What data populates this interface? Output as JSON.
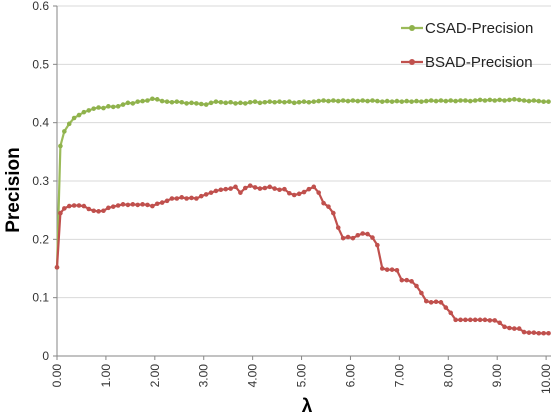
{
  "chart_data": {
    "type": "line",
    "xlabel": "λ",
    "ylabel": "Precision",
    "xlim": [
      0,
      10.1
    ],
    "ylim": [
      0,
      0.6
    ],
    "x_ticks": [
      0,
      1,
      2,
      3,
      4,
      5,
      6,
      7,
      8,
      9,
      10
    ],
    "x_tick_labels": [
      "0.00",
      "1.00",
      "2.00",
      "3.00",
      "4.00",
      "5.00",
      "6.00",
      "7.00",
      "8.00",
      "9.00",
      "10.00"
    ],
    "y_ticks": [
      0,
      0.1,
      0.2,
      0.3,
      0.4,
      0.5,
      0.6
    ],
    "y_tick_labels": [
      "0",
      "0.1",
      "0.2",
      "0.3",
      "0.4",
      "0.5",
      "0.6"
    ],
    "grid": "horizontal",
    "legend_position": "top-right",
    "series": [
      {
        "name": "CSAD-Precision",
        "color": "#9bbb59",
        "marker_color": "#8fb24c",
        "points": [
          [
            0.0,
            0.152
          ],
          [
            0.07,
            0.36
          ],
          [
            0.15,
            0.385
          ],
          [
            0.25,
            0.398
          ],
          [
            0.35,
            0.408
          ],
          [
            0.45,
            0.413
          ],
          [
            0.55,
            0.418
          ],
          [
            0.65,
            0.421
          ],
          [
            0.75,
            0.424
          ],
          [
            0.85,
            0.426
          ],
          [
            0.95,
            0.425
          ],
          [
            1.05,
            0.428
          ],
          [
            1.15,
            0.427
          ],
          [
            1.25,
            0.428
          ],
          [
            1.35,
            0.431
          ],
          [
            1.45,
            0.434
          ],
          [
            1.55,
            0.433
          ],
          [
            1.65,
            0.436
          ],
          [
            1.75,
            0.437
          ],
          [
            1.85,
            0.438
          ],
          [
            1.95,
            0.441
          ],
          [
            2.05,
            0.44
          ],
          [
            2.15,
            0.437
          ],
          [
            2.25,
            0.436
          ],
          [
            2.35,
            0.435
          ],
          [
            2.45,
            0.436
          ],
          [
            2.55,
            0.435
          ],
          [
            2.65,
            0.433
          ],
          [
            2.75,
            0.434
          ],
          [
            2.85,
            0.433
          ],
          [
            2.95,
            0.432
          ],
          [
            3.05,
            0.431
          ],
          [
            3.15,
            0.434
          ],
          [
            3.25,
            0.436
          ],
          [
            3.35,
            0.435
          ],
          [
            3.45,
            0.434
          ],
          [
            3.55,
            0.435
          ],
          [
            3.65,
            0.433
          ],
          [
            3.75,
            0.434
          ],
          [
            3.85,
            0.433
          ],
          [
            3.95,
            0.435
          ],
          [
            4.05,
            0.436
          ],
          [
            4.15,
            0.434
          ],
          [
            4.25,
            0.435
          ],
          [
            4.35,
            0.436
          ],
          [
            4.45,
            0.435
          ],
          [
            4.55,
            0.436
          ],
          [
            4.65,
            0.435
          ],
          [
            4.75,
            0.436
          ],
          [
            4.85,
            0.434
          ],
          [
            4.95,
            0.435
          ],
          [
            5.05,
            0.436
          ],
          [
            5.15,
            0.435
          ],
          [
            5.25,
            0.436
          ],
          [
            5.35,
            0.437
          ],
          [
            5.45,
            0.438
          ],
          [
            5.55,
            0.437
          ],
          [
            5.65,
            0.438
          ],
          [
            5.75,
            0.437
          ],
          [
            5.85,
            0.438
          ],
          [
            5.95,
            0.437
          ],
          [
            6.05,
            0.438
          ],
          [
            6.15,
            0.437
          ],
          [
            6.25,
            0.438
          ],
          [
            6.35,
            0.437
          ],
          [
            6.45,
            0.438
          ],
          [
            6.55,
            0.437
          ],
          [
            6.65,
            0.436
          ],
          [
            6.75,
            0.437
          ],
          [
            6.85,
            0.436
          ],
          [
            6.95,
            0.437
          ],
          [
            7.05,
            0.436
          ],
          [
            7.15,
            0.437
          ],
          [
            7.25,
            0.436
          ],
          [
            7.35,
            0.437
          ],
          [
            7.45,
            0.436
          ],
          [
            7.55,
            0.437
          ],
          [
            7.65,
            0.438
          ],
          [
            7.75,
            0.437
          ],
          [
            7.85,
            0.438
          ],
          [
            7.95,
            0.437
          ],
          [
            8.05,
            0.438
          ],
          [
            8.15,
            0.437
          ],
          [
            8.25,
            0.438
          ],
          [
            8.35,
            0.438
          ],
          [
            8.45,
            0.437
          ],
          [
            8.55,
            0.438
          ],
          [
            8.65,
            0.439
          ],
          [
            8.75,
            0.438
          ],
          [
            8.85,
            0.439
          ],
          [
            8.95,
            0.438
          ],
          [
            9.05,
            0.439
          ],
          [
            9.15,
            0.438
          ],
          [
            9.25,
            0.439
          ],
          [
            9.35,
            0.44
          ],
          [
            9.45,
            0.439
          ],
          [
            9.55,
            0.438
          ],
          [
            9.65,
            0.437
          ],
          [
            9.75,
            0.438
          ],
          [
            9.85,
            0.437
          ],
          [
            9.95,
            0.436
          ],
          [
            10.05,
            0.436
          ]
        ]
      },
      {
        "name": "BSAD-Precision",
        "color": "#c0504d",
        "marker_color": "#c0504d",
        "points": [
          [
            0.0,
            0.152
          ],
          [
            0.07,
            0.245
          ],
          [
            0.15,
            0.253
          ],
          [
            0.25,
            0.257
          ],
          [
            0.35,
            0.258
          ],
          [
            0.45,
            0.258
          ],
          [
            0.55,
            0.257
          ],
          [
            0.65,
            0.252
          ],
          [
            0.75,
            0.249
          ],
          [
            0.85,
            0.248
          ],
          [
            0.95,
            0.249
          ],
          [
            1.05,
            0.254
          ],
          [
            1.15,
            0.256
          ],
          [
            1.25,
            0.258
          ],
          [
            1.35,
            0.26
          ],
          [
            1.45,
            0.259
          ],
          [
            1.55,
            0.26
          ],
          [
            1.65,
            0.259
          ],
          [
            1.75,
            0.26
          ],
          [
            1.85,
            0.259
          ],
          [
            1.95,
            0.257
          ],
          [
            2.05,
            0.261
          ],
          [
            2.15,
            0.263
          ],
          [
            2.25,
            0.266
          ],
          [
            2.35,
            0.27
          ],
          [
            2.45,
            0.27
          ],
          [
            2.55,
            0.272
          ],
          [
            2.65,
            0.27
          ],
          [
            2.75,
            0.271
          ],
          [
            2.85,
            0.27
          ],
          [
            2.95,
            0.274
          ],
          [
            3.05,
            0.277
          ],
          [
            3.15,
            0.28
          ],
          [
            3.25,
            0.283
          ],
          [
            3.35,
            0.285
          ],
          [
            3.45,
            0.286
          ],
          [
            3.55,
            0.287
          ],
          [
            3.65,
            0.29
          ],
          [
            3.75,
            0.28
          ],
          [
            3.85,
            0.288
          ],
          [
            3.95,
            0.292
          ],
          [
            4.05,
            0.289
          ],
          [
            4.15,
            0.287
          ],
          [
            4.25,
            0.288
          ],
          [
            4.35,
            0.29
          ],
          [
            4.45,
            0.287
          ],
          [
            4.55,
            0.285
          ],
          [
            4.65,
            0.286
          ],
          [
            4.75,
            0.279
          ],
          [
            4.85,
            0.276
          ],
          [
            4.95,
            0.278
          ],
          [
            5.05,
            0.281
          ],
          [
            5.15,
            0.286
          ],
          [
            5.25,
            0.29
          ],
          [
            5.35,
            0.28
          ],
          [
            5.45,
            0.262
          ],
          [
            5.55,
            0.256
          ],
          [
            5.65,
            0.245
          ],
          [
            5.75,
            0.22
          ],
          [
            5.85,
            0.202
          ],
          [
            5.95,
            0.204
          ],
          [
            6.05,
            0.202
          ],
          [
            6.15,
            0.207
          ],
          [
            6.25,
            0.21
          ],
          [
            6.35,
            0.209
          ],
          [
            6.45,
            0.203
          ],
          [
            6.55,
            0.19
          ],
          [
            6.65,
            0.15
          ],
          [
            6.75,
            0.148
          ],
          [
            6.85,
            0.148
          ],
          [
            6.95,
            0.147
          ],
          [
            7.05,
            0.13
          ],
          [
            7.15,
            0.13
          ],
          [
            7.25,
            0.128
          ],
          [
            7.35,
            0.12
          ],
          [
            7.45,
            0.108
          ],
          [
            7.55,
            0.094
          ],
          [
            7.65,
            0.092
          ],
          [
            7.75,
            0.093
          ],
          [
            7.85,
            0.092
          ],
          [
            7.95,
            0.083
          ],
          [
            8.05,
            0.074
          ],
          [
            8.15,
            0.062
          ],
          [
            8.25,
            0.062
          ],
          [
            8.35,
            0.062
          ],
          [
            8.45,
            0.062
          ],
          [
            8.55,
            0.062
          ],
          [
            8.65,
            0.062
          ],
          [
            8.75,
            0.062
          ],
          [
            8.85,
            0.061
          ],
          [
            8.95,
            0.061
          ],
          [
            9.05,
            0.057
          ],
          [
            9.15,
            0.05
          ],
          [
            9.25,
            0.048
          ],
          [
            9.35,
            0.047
          ],
          [
            9.45,
            0.047
          ],
          [
            9.55,
            0.041
          ],
          [
            9.65,
            0.04
          ],
          [
            9.75,
            0.04
          ],
          [
            9.85,
            0.039
          ],
          [
            9.95,
            0.039
          ],
          [
            10.05,
            0.039
          ]
        ]
      }
    ]
  }
}
